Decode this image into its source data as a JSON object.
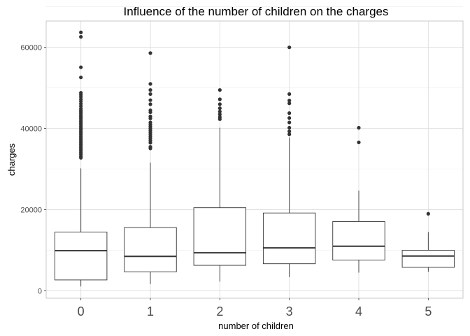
{
  "chart_data": {
    "type": "boxplot",
    "title": "Influence of the number of children on the charges",
    "xlabel": "number of children",
    "ylabel": "charges",
    "categories": [
      "0",
      "1",
      "2",
      "3",
      "4",
      "5"
    ],
    "ylim": [
      -1800,
      66500
    ],
    "yticks": [
      0,
      20000,
      40000,
      60000
    ],
    "ytick_labels": [
      "0",
      "20000",
      "40000",
      "60000"
    ],
    "grid": true,
    "colors": {
      "box_line": "#333333",
      "grid": "#dddddd",
      "outlier": "#333333",
      "panel_border": "#c8c8c8"
    },
    "boxes": [
      {
        "category": "0",
        "whisker_low": 1100,
        "q1": 2700,
        "median": 9900,
        "q3": 14500,
        "whisker_high": 30200,
        "outliers": [
          32800,
          33200,
          33700,
          34100,
          34500,
          34900,
          35300,
          35700,
          36100,
          36500,
          36900,
          37300,
          37700,
          38100,
          38500,
          38900,
          39300,
          39700,
          40100,
          40500,
          40900,
          41300,
          41700,
          42100,
          42500,
          42900,
          43300,
          43700,
          44100,
          44500,
          44900,
          45500,
          46100,
          46700,
          47200,
          47800,
          48300,
          48800,
          52600,
          55100,
          62600,
          63700
        ]
      },
      {
        "category": "1",
        "whisker_low": 1700,
        "q1": 4700,
        "median": 8500,
        "q3": 15600,
        "whisker_high": 31600,
        "outliers": [
          35100,
          35500,
          36500,
          37000,
          37500,
          38000,
          38500,
          39000,
          39500,
          40000,
          40500,
          41000,
          41500,
          42500,
          43000,
          44000,
          44500,
          46000,
          47000,
          48500,
          49500,
          51000,
          58600
        ]
      },
      {
        "category": "2",
        "whisker_low": 2300,
        "q1": 6300,
        "median": 9400,
        "q3": 20500,
        "whisker_high": 40200,
        "outliers": [
          42300,
          42800,
          43500,
          44200,
          45000,
          46000,
          47200,
          49500
        ]
      },
      {
        "category": "3",
        "whisker_low": 3400,
        "q1": 6700,
        "median": 10600,
        "q3": 19200,
        "whisker_high": 37800,
        "outliers": [
          38600,
          39300,
          40200,
          41500,
          42600,
          43800,
          46200,
          46900,
          48500,
          60000
        ]
      },
      {
        "category": "4",
        "whisker_low": 4500,
        "q1": 7600,
        "median": 11000,
        "q3": 17100,
        "whisker_high": 24700,
        "outliers": [
          36600,
          40200
        ]
      },
      {
        "category": "5",
        "whisker_low": 4700,
        "q1": 5800,
        "median": 8600,
        "q3": 10000,
        "whisker_high": 14500,
        "outliers": [
          19000
        ]
      }
    ]
  }
}
